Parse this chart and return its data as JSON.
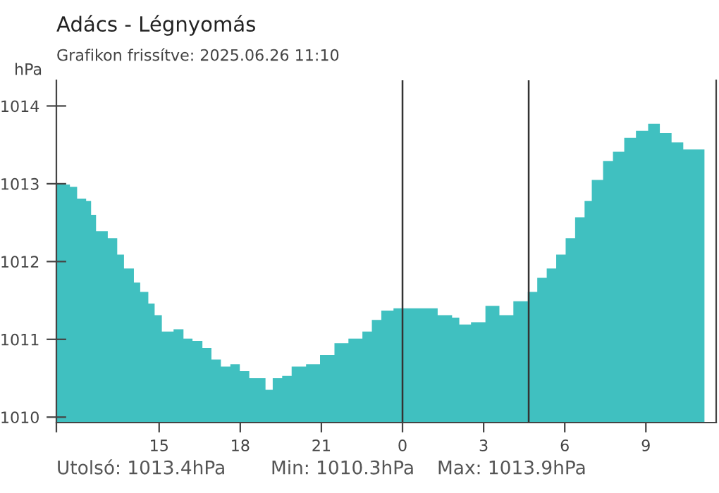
{
  "chart_data": {
    "type": "area",
    "title": "Adács - Légnyomás",
    "subtitle": "Grafikon frissítve: 2025.06.26 11:10",
    "ylabel": "hPa",
    "x": [
      "2025-06-25T11:12",
      "2025-06-25T11:42",
      "2025-06-25T11:58",
      "2025-06-25T12:18",
      "2025-06-25T12:29",
      "2025-06-25T12:40",
      "2025-06-25T13:06",
      "2025-06-25T13:27",
      "2025-06-25T13:42",
      "2025-06-25T14:04",
      "2025-06-25T14:18",
      "2025-06-25T14:36",
      "2025-06-25T14:50",
      "2025-06-25T15:06",
      "2025-06-25T15:32",
      "2025-06-25T15:54",
      "2025-06-25T16:14",
      "2025-06-25T16:36",
      "2025-06-25T16:56",
      "2025-06-25T17:17",
      "2025-06-25T17:38",
      "2025-06-25T17:59",
      "2025-06-25T18:20",
      "2025-06-25T18:41",
      "2025-06-25T18:56",
      "2025-06-25T19:12",
      "2025-06-25T19:33",
      "2025-06-25T19:54",
      "2025-06-25T20:26",
      "2025-06-25T20:57",
      "2025-06-25T21:29",
      "2025-06-25T22:00",
      "2025-06-25T22:31",
      "2025-06-25T22:52",
      "2025-06-25T23:13",
      "2025-06-25T23:40",
      "2025-06-26T00:06",
      "2025-06-26T00:48",
      "2025-06-26T01:18",
      "2025-06-26T01:50",
      "2025-06-26T02:06",
      "2025-06-26T02:32",
      "2025-06-26T03:04",
      "2025-06-26T03:35",
      "2025-06-26T04:06",
      "2025-06-26T04:38",
      "2025-06-26T04:59",
      "2025-06-26T05:20",
      "2025-06-26T05:41",
      "2025-06-26T06:02",
      "2025-06-26T06:23",
      "2025-06-26T06:44",
      "2025-06-26T07:00",
      "2025-06-26T07:25",
      "2025-06-26T07:47",
      "2025-06-26T08:12",
      "2025-06-26T08:38",
      "2025-06-26T09:05",
      "2025-06-26T09:31",
      "2025-06-26T09:57",
      "2025-06-26T10:23",
      "2025-06-26T10:44",
      "2025-06-26T11:10"
    ],
    "values": [
      1012.99,
      1012.96,
      1012.81,
      1012.78,
      1012.6,
      1012.39,
      1012.3,
      1012.09,
      1011.91,
      1011.73,
      1011.61,
      1011.46,
      1011.31,
      1011.1,
      1011.13,
      1011.01,
      1010.98,
      1010.89,
      1010.74,
      1010.65,
      1010.68,
      1010.59,
      1010.5,
      1010.5,
      1010.35,
      1010.5,
      1010.53,
      1010.65,
      1010.68,
      1010.8,
      1010.95,
      1011.01,
      1011.1,
      1011.25,
      1011.37,
      1011.4,
      1011.4,
      1011.4,
      1011.31,
      1011.28,
      1011.19,
      1011.22,
      1011.43,
      1011.31,
      1011.49,
      1011.61,
      1011.79,
      1011.91,
      1012.09,
      1012.3,
      1012.57,
      1012.78,
      1013.05,
      1013.29,
      1013.41,
      1013.59,
      1013.68,
      1013.77,
      1013.65,
      1013.53,
      1013.44,
      1013.44,
      1013.47
    ],
    "color": "#40c0c0",
    "xlim": [
      "2025-06-25T11:12",
      "2025-06-26T11:36"
    ],
    "ylim": [
      1009.93,
      1014.33
    ],
    "xticks": [
      {
        "value": "2025-06-25T11:12",
        "label": null
      },
      {
        "value": "2025-06-25T15:00",
        "label": "15"
      },
      {
        "value": "2025-06-25T18:00",
        "label": "18"
      },
      {
        "value": "2025-06-25T21:00",
        "label": "21"
      },
      {
        "value": "2025-06-26T00:00",
        "label": "0"
      },
      {
        "value": "2025-06-26T03:00",
        "label": "3"
      },
      {
        "value": "2025-06-26T06:00",
        "label": "6"
      },
      {
        "value": "2025-06-26T09:00",
        "label": "9"
      }
    ],
    "yticks": [
      1010,
      1011,
      1012,
      1013,
      1014
    ],
    "ref_lines": [
      {
        "axis": "x",
        "value": "2025-06-26T00:00",
        "color": "#333333"
      },
      {
        "axis": "x",
        "value": "2025-06-26T04:40",
        "color": "#333333"
      }
    ],
    "annotations": [
      "Utolsó: 1013.4hPa",
      "Min: 1010.3hPa",
      "Max: 1013.9hPa"
    ],
    "grid": false,
    "legend": false
  }
}
